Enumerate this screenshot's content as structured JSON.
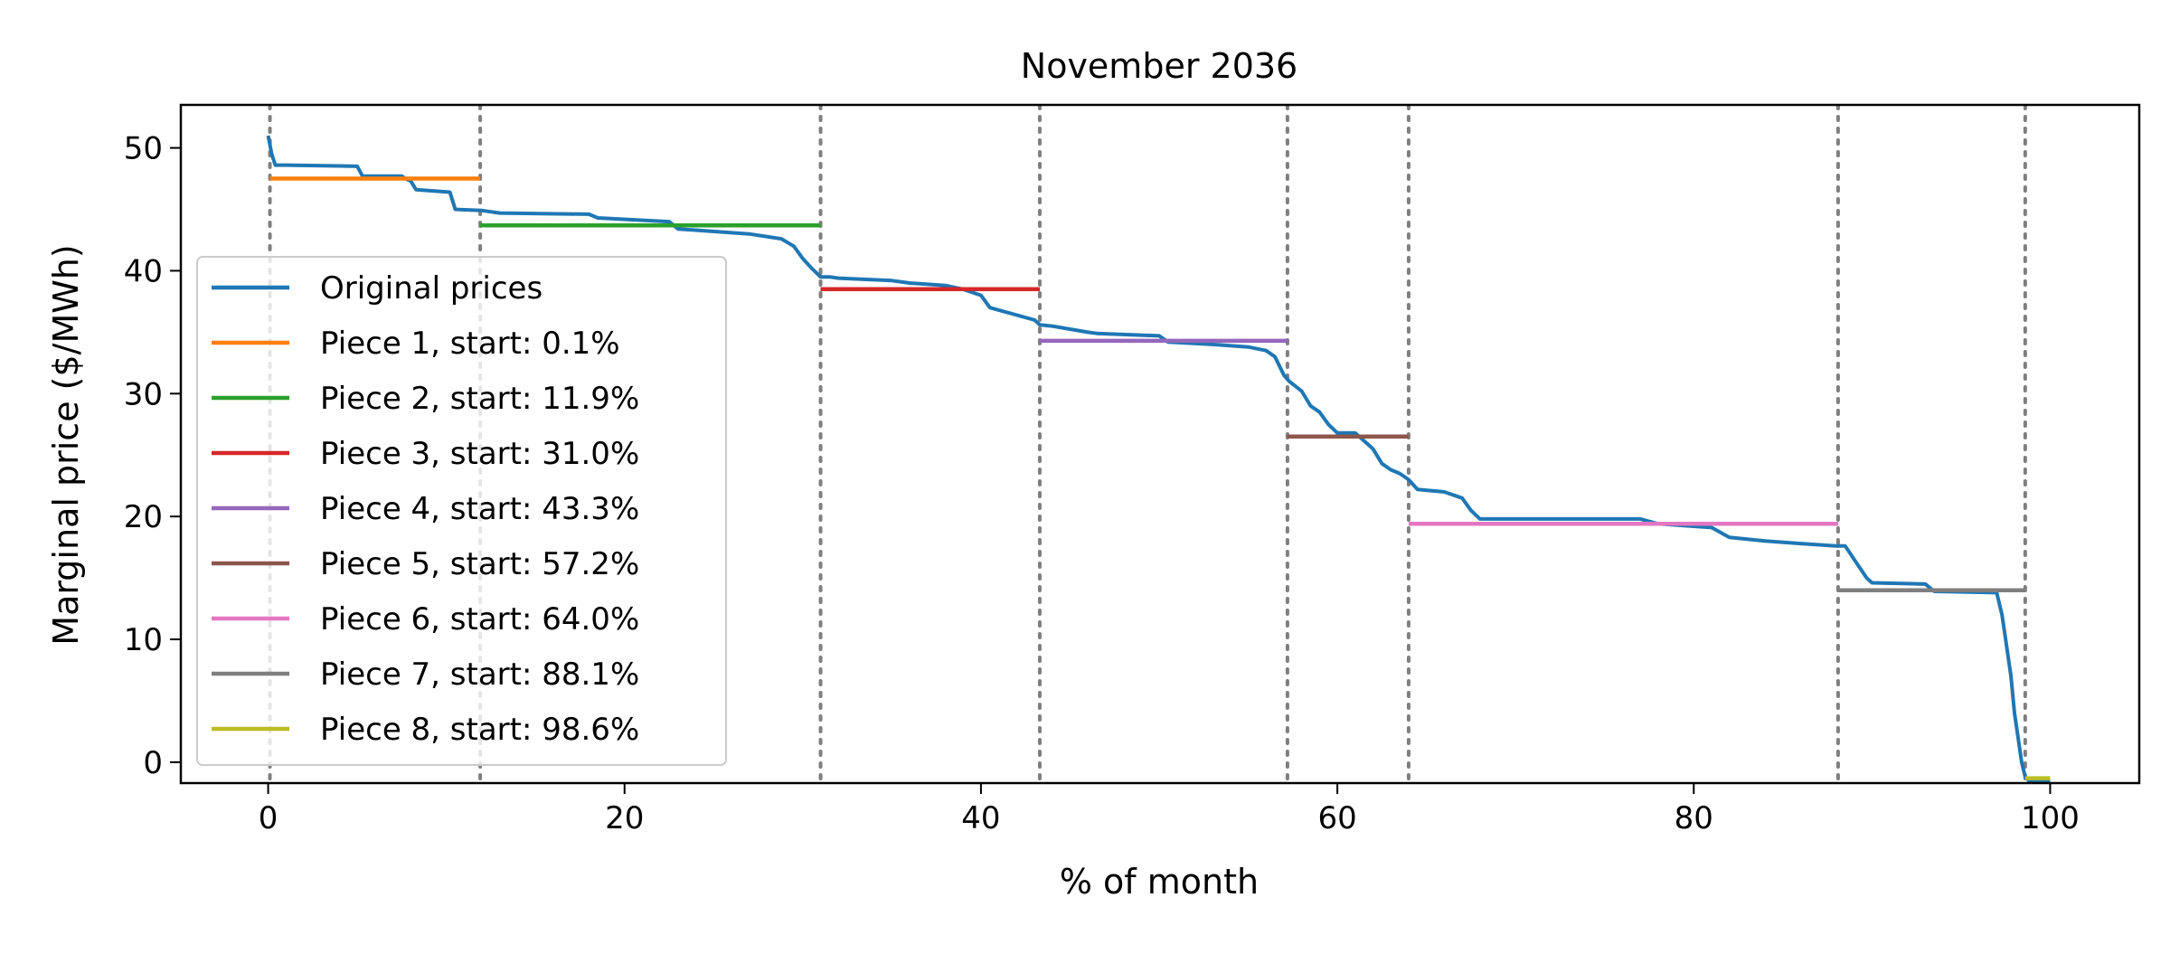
{
  "chart_data": {
    "type": "line",
    "title": "November 2036",
    "xlabel": "% of month",
    "ylabel": "Marginal price ($/MWh)",
    "xlim": [
      -4.9,
      105
    ],
    "ylim": [
      -1.7,
      53.5
    ],
    "xticks": [
      0,
      20,
      40,
      60,
      80,
      100
    ],
    "yticks": [
      0,
      10,
      20,
      30,
      40,
      50
    ],
    "grid": false,
    "legend_position": "lower-left",
    "breakpoints_style": "dotted-gray-vertical-lines",
    "breakpoints": [
      0.1,
      11.9,
      31.0,
      43.3,
      57.2,
      64.0,
      88.1,
      98.6
    ],
    "series": [
      {
        "name": "Original prices",
        "color": "#1f77b4",
        "kind": "line",
        "x": [
          0,
          0.2,
          0.4,
          1,
          5,
          5.3,
          7.5,
          7.7,
          8,
          8.3,
          10.2,
          10.5,
          12,
          13,
          18,
          18.5,
          22.5,
          23,
          27,
          28.8,
          29.5,
          30,
          30.5,
          31,
          31.5,
          32,
          35,
          36,
          38,
          39,
          40,
          40.5,
          41,
          43,
          43.3,
          44,
          46,
          46.5,
          50,
          50.5,
          53,
          55,
          56,
          56.5,
          57,
          57.3,
          58,
          58.5,
          59,
          59.5,
          60,
          61,
          62,
          62.5,
          63,
          63.5,
          64,
          64.5,
          66,
          67,
          67.5,
          68,
          77,
          78,
          81,
          82,
          84,
          86,
          88,
          88.5,
          89,
          89.7,
          90,
          93,
          93.5,
          97,
          97.3,
          97.5,
          97.8,
          98,
          98.2,
          98.4,
          98.6,
          98.8,
          99.3,
          100
        ],
        "values": [
          51,
          49.5,
          48.6,
          48.6,
          48.5,
          47.7,
          47.7,
          47.5,
          47.3,
          46.6,
          46.4,
          45,
          44.9,
          44.7,
          44.6,
          44.3,
          44.0,
          43.4,
          43.0,
          42.6,
          42.0,
          41.0,
          40.2,
          39.5,
          39.5,
          39.4,
          39.2,
          39.0,
          38.8,
          38.5,
          38.0,
          37.0,
          36.8,
          36.0,
          35.6,
          35.5,
          35.0,
          34.9,
          34.7,
          34.2,
          34.0,
          33.8,
          33.5,
          33.0,
          31.5,
          31.0,
          30.2,
          29.0,
          28.5,
          27.5,
          26.8,
          26.8,
          25.5,
          24.3,
          23.8,
          23.5,
          23.0,
          22.2,
          22.0,
          21.5,
          20.5,
          19.8,
          19.8,
          19.4,
          19.1,
          18.3,
          18.0,
          17.8,
          17.6,
          17.6,
          16.5,
          15.0,
          14.6,
          14.5,
          13.9,
          13.8,
          12,
          10,
          7,
          4,
          2,
          0,
          -1.2,
          -1.5,
          -1.5,
          -1.5
        ]
      },
      {
        "name": "Piece 1, start: 0.1%",
        "color": "#ff7f0e",
        "kind": "step",
        "x": [
          0.1,
          11.9
        ],
        "values": [
          47.5,
          47.5
        ]
      },
      {
        "name": "Piece 2, start: 11.9%",
        "color": "#2ca02c",
        "kind": "step",
        "x": [
          11.9,
          31.0
        ],
        "values": [
          43.7,
          43.7
        ]
      },
      {
        "name": "Piece 3, start: 31.0%",
        "color": "#d62728",
        "kind": "step",
        "x": [
          31.0,
          43.3
        ],
        "values": [
          38.5,
          38.5
        ]
      },
      {
        "name": "Piece 4, start: 43.3%",
        "color": "#9467bd",
        "kind": "step",
        "x": [
          43.3,
          57.2
        ],
        "values": [
          34.3,
          34.3
        ]
      },
      {
        "name": "Piece 5, start: 57.2%",
        "color": "#8c564b",
        "kind": "step",
        "x": [
          57.2,
          64.0
        ],
        "values": [
          26.5,
          26.5
        ]
      },
      {
        "name": "Piece 6, start: 64.0%",
        "color": "#e377c2",
        "kind": "step",
        "x": [
          64.0,
          88.1
        ],
        "values": [
          19.4,
          19.4
        ]
      },
      {
        "name": "Piece 7, start: 88.1%",
        "color": "#7f7f7f",
        "kind": "step",
        "x": [
          88.1,
          98.6
        ],
        "values": [
          14.0,
          14.0
        ]
      },
      {
        "name": "Piece 8, start: 98.6%",
        "color": "#bcbd22",
        "kind": "step",
        "x": [
          98.6,
          100
        ],
        "values": [
          -1.3,
          -1.3
        ]
      }
    ]
  }
}
